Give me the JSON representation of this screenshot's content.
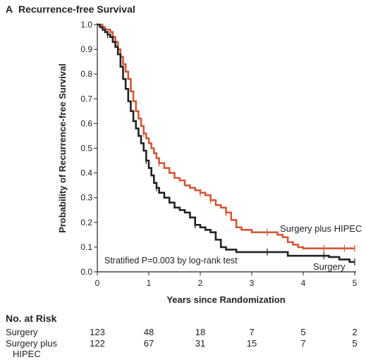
{
  "chart_data": {
    "type": "line",
    "panel": "A",
    "title": "Recurrence-free Survival",
    "xlabel": "Years since Randomization",
    "ylabel": "Probability of Recurrence-free Survival",
    "xlim": [
      0,
      5
    ],
    "ylim": [
      0,
      1
    ],
    "xticks": [
      "0",
      "1",
      "2",
      "3",
      "4",
      "5"
    ],
    "yticks": [
      "0.0",
      "0.1",
      "0.2",
      "0.3",
      "0.4",
      "0.5",
      "0.6",
      "0.7",
      "0.8",
      "0.9",
      "1.0"
    ],
    "grid": false,
    "annotation": "Stratified P=0.003 by log-rank test",
    "series": [
      {
        "name": "Surgery plus HIPEC",
        "color": "#d4583a",
        "points": [
          [
            0,
            1.0
          ],
          [
            0.1,
            0.99
          ],
          [
            0.15,
            0.98
          ],
          [
            0.25,
            0.97
          ],
          [
            0.3,
            0.95
          ],
          [
            0.35,
            0.93
          ],
          [
            0.4,
            0.9
          ],
          [
            0.45,
            0.87
          ],
          [
            0.5,
            0.84
          ],
          [
            0.55,
            0.81
          ],
          [
            0.6,
            0.78
          ],
          [
            0.65,
            0.73
          ],
          [
            0.7,
            0.69
          ],
          [
            0.75,
            0.65
          ],
          [
            0.8,
            0.62
          ],
          [
            0.85,
            0.59
          ],
          [
            0.9,
            0.56
          ],
          [
            0.95,
            0.54
          ],
          [
            1.0,
            0.52
          ],
          [
            1.05,
            0.5
          ],
          [
            1.1,
            0.48
          ],
          [
            1.15,
            0.46
          ],
          [
            1.2,
            0.44
          ],
          [
            1.3,
            0.42
          ],
          [
            1.4,
            0.4
          ],
          [
            1.5,
            0.38
          ],
          [
            1.6,
            0.37
          ],
          [
            1.7,
            0.35
          ],
          [
            1.8,
            0.34
          ],
          [
            1.9,
            0.33
          ],
          [
            2.0,
            0.32
          ],
          [
            2.1,
            0.31
          ],
          [
            2.2,
            0.29
          ],
          [
            2.3,
            0.27
          ],
          [
            2.4,
            0.26
          ],
          [
            2.5,
            0.24
          ],
          [
            2.6,
            0.21
          ],
          [
            2.7,
            0.18
          ],
          [
            2.8,
            0.17
          ],
          [
            3.0,
            0.16
          ],
          [
            3.3,
            0.16
          ],
          [
            3.5,
            0.15
          ],
          [
            3.6,
            0.14
          ],
          [
            3.7,
            0.12
          ],
          [
            3.8,
            0.11
          ],
          [
            3.9,
            0.1
          ],
          [
            4.0,
            0.095
          ],
          [
            4.5,
            0.095
          ],
          [
            5.0,
            0.095
          ]
        ],
        "censor_x": [
          0.15,
          0.35,
          0.9,
          1.2,
          2.0,
          2.2,
          2.5,
          3.3,
          4.4,
          4.8,
          5.0
        ]
      },
      {
        "name": "Surgery",
        "color": "#222222",
        "points": [
          [
            0,
            1.0
          ],
          [
            0.05,
            0.99
          ],
          [
            0.1,
            0.98
          ],
          [
            0.15,
            0.97
          ],
          [
            0.2,
            0.96
          ],
          [
            0.25,
            0.95
          ],
          [
            0.3,
            0.93
          ],
          [
            0.35,
            0.91
          ],
          [
            0.4,
            0.88
          ],
          [
            0.45,
            0.83
          ],
          [
            0.5,
            0.78
          ],
          [
            0.55,
            0.74
          ],
          [
            0.6,
            0.69
          ],
          [
            0.65,
            0.65
          ],
          [
            0.7,
            0.61
          ],
          [
            0.75,
            0.58
          ],
          [
            0.8,
            0.55
          ],
          [
            0.85,
            0.52
          ],
          [
            0.9,
            0.49
          ],
          [
            0.95,
            0.45
          ],
          [
            1.0,
            0.42
          ],
          [
            1.05,
            0.39
          ],
          [
            1.1,
            0.36
          ],
          [
            1.15,
            0.34
          ],
          [
            1.2,
            0.32
          ],
          [
            1.3,
            0.3
          ],
          [
            1.4,
            0.28
          ],
          [
            1.5,
            0.26
          ],
          [
            1.6,
            0.25
          ],
          [
            1.7,
            0.24
          ],
          [
            1.8,
            0.22
          ],
          [
            1.9,
            0.19
          ],
          [
            2.0,
            0.18
          ],
          [
            2.1,
            0.17
          ],
          [
            2.2,
            0.16
          ],
          [
            2.3,
            0.13
          ],
          [
            2.4,
            0.1
          ],
          [
            2.5,
            0.09
          ],
          [
            2.7,
            0.08
          ],
          [
            3.5,
            0.08
          ],
          [
            3.7,
            0.065
          ],
          [
            4.0,
            0.065
          ],
          [
            4.5,
            0.06
          ],
          [
            4.7,
            0.05
          ],
          [
            4.9,
            0.04
          ],
          [
            5.0,
            0.04
          ]
        ],
        "censor_x": [
          0.2,
          0.95,
          1.15,
          1.9,
          3.3,
          4.4,
          5.0
        ]
      }
    ],
    "series_labels": [
      "Surgery plus HIPEC",
      "Surgery"
    ]
  },
  "risk_table": {
    "title": "No. at Risk",
    "rows": [
      {
        "label_lines": [
          "Surgery"
        ],
        "values": [
          "123",
          "48",
          "18",
          "7",
          "5",
          "2"
        ]
      },
      {
        "label_lines": [
          "Surgery plus",
          "HIPEC"
        ],
        "values": [
          "122",
          "67",
          "31",
          "15",
          "7",
          "5"
        ]
      }
    ]
  }
}
